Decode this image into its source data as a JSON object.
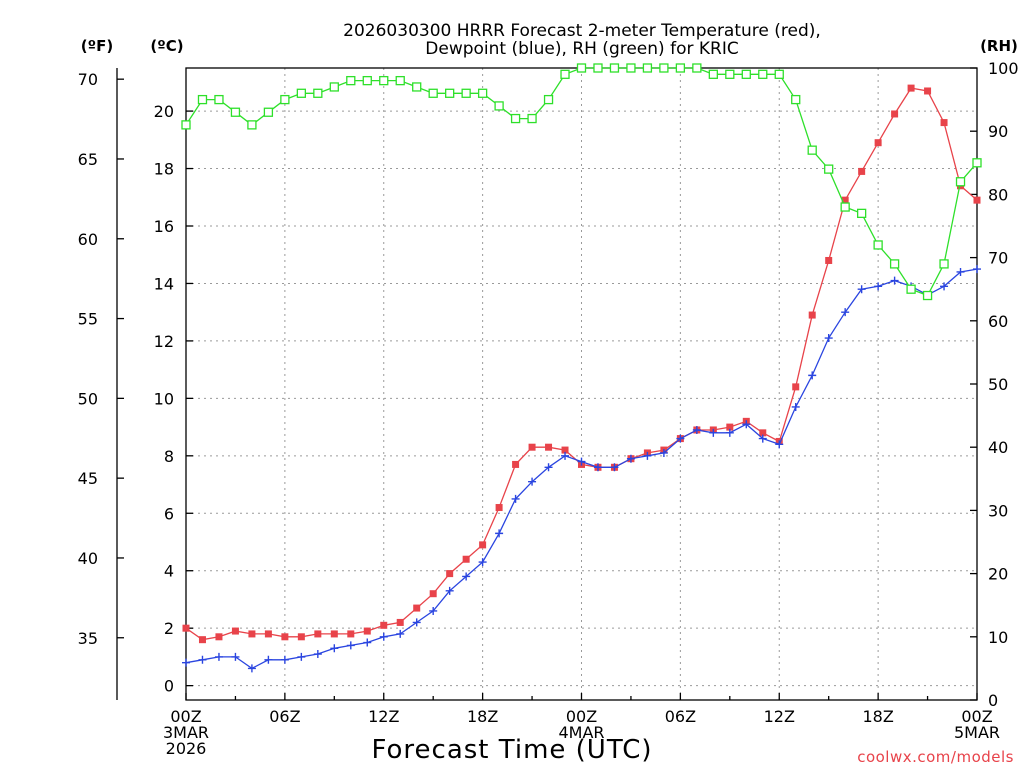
{
  "chart_data": {
    "type": "line",
    "title_lines": [
      "2026030300 HRRR Forecast 2-meter Temperature (red),",
      "Dewpoint (blue), RH (green) for KRIC"
    ],
    "xlabel": "Forecast Time (UTC)",
    "credit": "coolwx.com/models",
    "left_units": {
      "fahrenheit": "(ºF)",
      "celsius": "(ºC)"
    },
    "right_unit": "(RH)",
    "x_ticks": [
      {
        "hour": 0,
        "lines": [
          "00Z",
          "3MAR",
          "2026"
        ]
      },
      {
        "hour": 6,
        "lines": [
          "06Z"
        ]
      },
      {
        "hour": 12,
        "lines": [
          "12Z"
        ]
      },
      {
        "hour": 18,
        "lines": [
          "18Z"
        ]
      },
      {
        "hour": 24,
        "lines": [
          "00Z",
          "4MAR"
        ]
      },
      {
        "hour": 30,
        "lines": [
          "06Z"
        ]
      },
      {
        "hour": 36,
        "lines": [
          "12Z"
        ]
      },
      {
        "hour": 42,
        "lines": [
          "18Z"
        ]
      },
      {
        "hour": 48,
        "lines": [
          "00Z",
          "5MAR"
        ]
      }
    ],
    "x_range": [
      0,
      48
    ],
    "celsius_range": [
      -0.5,
      21.5
    ],
    "celsius_ticks": [
      0,
      2,
      4,
      6,
      8,
      10,
      12,
      14,
      16,
      18,
      20
    ],
    "fahrenheit_ticks": [
      35,
      40,
      45,
      50,
      55,
      60,
      65,
      70
    ],
    "rh_range": [
      0,
      100
    ],
    "rh_ticks": [
      0,
      10,
      20,
      30,
      40,
      50,
      60,
      70,
      80,
      90,
      100
    ],
    "series": [
      {
        "name": "Temperature",
        "unit": "C",
        "color": "#e8434a",
        "marker": "filled-square",
        "values": [
          2.0,
          1.6,
          1.7,
          1.9,
          1.8,
          1.8,
          1.7,
          1.7,
          1.8,
          1.8,
          1.8,
          1.9,
          2.1,
          2.2,
          2.7,
          3.2,
          3.9,
          4.4,
          4.9,
          6.2,
          7.7,
          8.3,
          8.3,
          8.2,
          7.7,
          7.6,
          7.6,
          7.9,
          8.1,
          8.2,
          8.6,
          8.9,
          8.9,
          9.0,
          9.2,
          8.8,
          8.5,
          10.4,
          12.9,
          14.8,
          16.9,
          17.9,
          18.9,
          19.9,
          20.8,
          20.7,
          19.6,
          17.4,
          16.9
        ]
      },
      {
        "name": "Dewpoint",
        "unit": "C",
        "color": "#2a45e0",
        "marker": "plus",
        "values": [
          0.8,
          0.9,
          1.0,
          1.0,
          0.6,
          0.9,
          0.9,
          1.0,
          1.1,
          1.3,
          1.4,
          1.5,
          1.7,
          1.8,
          2.2,
          2.6,
          3.3,
          3.8,
          4.3,
          5.3,
          6.5,
          7.1,
          7.6,
          8.0,
          7.8,
          7.6,
          7.6,
          7.9,
          8.0,
          8.1,
          8.6,
          8.9,
          8.8,
          8.8,
          9.1,
          8.6,
          8.4,
          9.7,
          10.8,
          12.1,
          13.0,
          13.8,
          13.9,
          14.1,
          13.9,
          13.6,
          13.9,
          14.4,
          14.5
        ]
      },
      {
        "name": "Relative Humidity",
        "unit": "%",
        "color": "#2ee02a",
        "marker": "open-square",
        "values": [
          91,
          95,
          95,
          93,
          91,
          93,
          95,
          96,
          96,
          97,
          98,
          98,
          98,
          98,
          97,
          96,
          96,
          96,
          96,
          94,
          92,
          92,
          95,
          99,
          100,
          100,
          100,
          100,
          100,
          100,
          100,
          100,
          99,
          99,
          99,
          99,
          99,
          95,
          87,
          84,
          78,
          77,
          72,
          69,
          65,
          64,
          69,
          82,
          85
        ]
      }
    ]
  }
}
